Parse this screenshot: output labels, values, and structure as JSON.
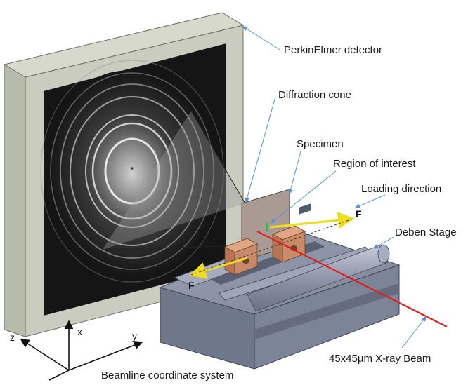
{
  "labels": {
    "detector": "PerkinElmer detector",
    "cone": "Diffraction cone",
    "specimen": "Specimen",
    "roi": "Region of interest",
    "loading": "Loading direction",
    "stage": "Deben Stage",
    "beam": "45x45µm X-ray Beam",
    "coords": "Beamline coordinate system"
  },
  "axes": {
    "x": "x",
    "y": "y",
    "z": "z"
  },
  "force": {
    "right": "F",
    "left": "F"
  },
  "colors": {
    "frame": "#c9ccbe",
    "beam": "#e02020",
    "force_arrow": "#f0dc1e",
    "leader": "#5b8fd0",
    "stage": "#8a92a6",
    "grips": "#c98a6a"
  }
}
